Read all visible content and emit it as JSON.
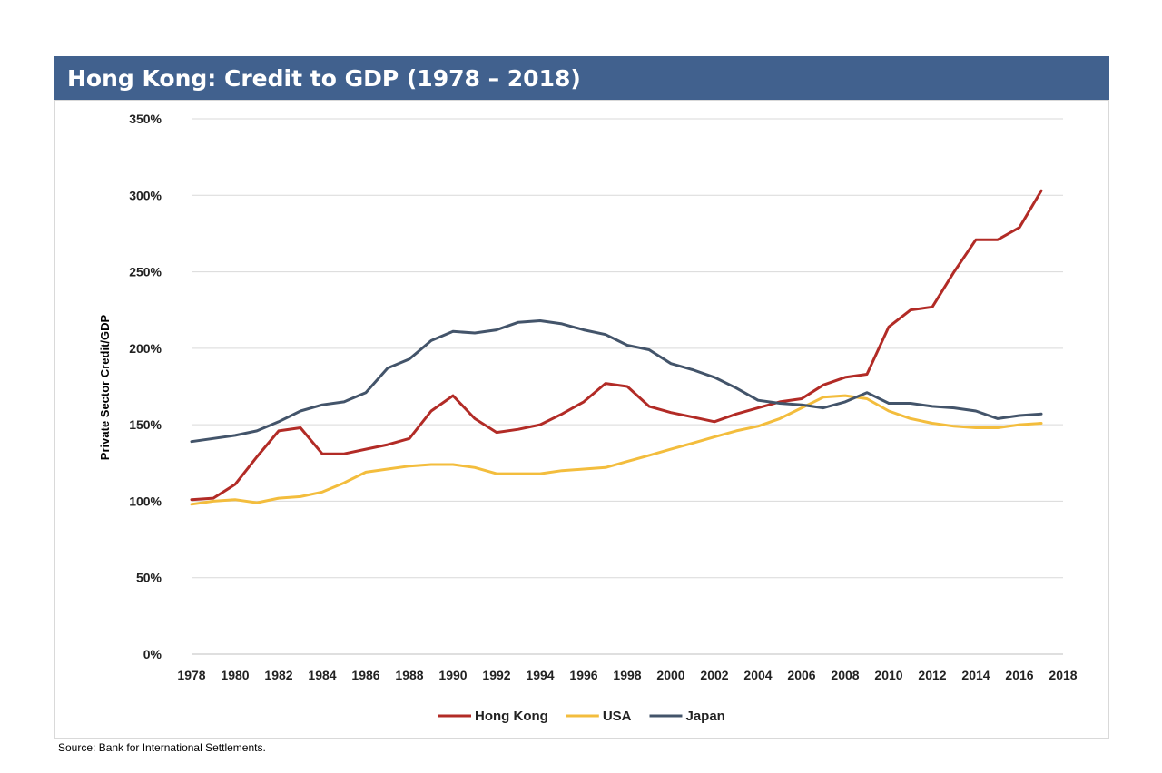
{
  "header": {
    "title": "Hong Kong: Credit to GDP (1978 – 2018)"
  },
  "footer": {
    "source": "Source: Bank for International Settlements."
  },
  "chart_data": {
    "type": "line",
    "title": "Hong Kong: Credit to GDP (1978 – 2018)",
    "xlabel": "",
    "ylabel": "Private Sector Credit/GDP",
    "xlim": [
      1978,
      2018
    ],
    "ylim": [
      0,
      350
    ],
    "x_ticks": [
      1978,
      1980,
      1982,
      1984,
      1986,
      1988,
      1990,
      1992,
      1994,
      1996,
      1998,
      2000,
      2002,
      2004,
      2006,
      2008,
      2010,
      2012,
      2014,
      2016,
      2018
    ],
    "y_ticks": [
      0,
      50,
      100,
      150,
      200,
      250,
      300,
      350
    ],
    "y_tick_labels": [
      "0%",
      "50%",
      "100%",
      "150%",
      "200%",
      "250%",
      "300%",
      "350%"
    ],
    "grid": "horizontal",
    "legend": "bottom-center",
    "x": [
      1978,
      1979,
      1980,
      1981,
      1982,
      1983,
      1984,
      1985,
      1986,
      1987,
      1988,
      1989,
      1990,
      1991,
      1992,
      1993,
      1994,
      1995,
      1996,
      1997,
      1998,
      1999,
      2000,
      2001,
      2002,
      2003,
      2004,
      2005,
      2006,
      2007,
      2008,
      2009,
      2010,
      2011,
      2012,
      2013,
      2014,
      2015,
      2016,
      2017
    ],
    "series": [
      {
        "name": "Hong Kong",
        "color": "#b22b26",
        "values": [
          101,
          102,
          111,
          129,
          146,
          148,
          131,
          131,
          134,
          137,
          141,
          159,
          169,
          154,
          145,
          147,
          150,
          157,
          165,
          177,
          175,
          162,
          158,
          155,
          152,
          157,
          161,
          165,
          167,
          176,
          181,
          183,
          214,
          225,
          227,
          250,
          271,
          271,
          279,
          303
        ]
      },
      {
        "name": "USA",
        "color": "#f3bd3d",
        "values": [
          98,
          100,
          101,
          99,
          102,
          103,
          106,
          112,
          119,
          121,
          123,
          124,
          124,
          122,
          118,
          118,
          118,
          120,
          121,
          122,
          126,
          130,
          134,
          138,
          142,
          146,
          149,
          154,
          161,
          168,
          169,
          167,
          159,
          154,
          151,
          149,
          148,
          148,
          150,
          151
        ]
      },
      {
        "name": "Japan",
        "color": "#43546a",
        "values": [
          139,
          141,
          143,
          146,
          152,
          159,
          163,
          165,
          171,
          187,
          193,
          205,
          211,
          210,
          212,
          217,
          218,
          216,
          212,
          209,
          202,
          199,
          190,
          186,
          181,
          174,
          166,
          164,
          163,
          161,
          165,
          171,
          164,
          164,
          162,
          161,
          159,
          154,
          156,
          157
        ]
      }
    ]
  }
}
